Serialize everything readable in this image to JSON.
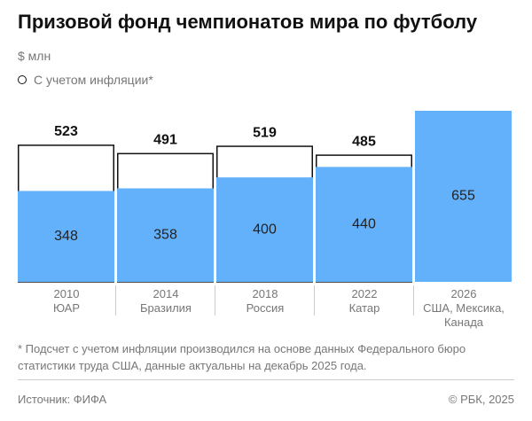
{
  "chart_data": {
    "type": "bar",
    "title": "Призовой фонд чемпионатов мира по футболу",
    "subtitle": "$ млн",
    "categories": [
      "2010",
      "2014",
      "2018",
      "2022",
      "2026"
    ],
    "countries": [
      "ЮАР",
      "Бразилия",
      "Россия",
      "Катар",
      "США, Мексика, Канада"
    ],
    "series": [
      {
        "name": "С учетом инфляции*",
        "color": "#ffffff",
        "values": [
          523,
          491,
          519,
          485,
          null
        ]
      },
      {
        "color": "#64b1fb",
        "values": [
          348,
          358,
          400,
          440,
          655
        ]
      }
    ],
    "footnote": "* Подсчет с учетом инфляции производился на основе данных Федерального бюро статистики труда США, данные актуальны на декабрь 2025 года.",
    "source": "Источник: ФИФА",
    "copyright": "© РБК, 2025"
  }
}
